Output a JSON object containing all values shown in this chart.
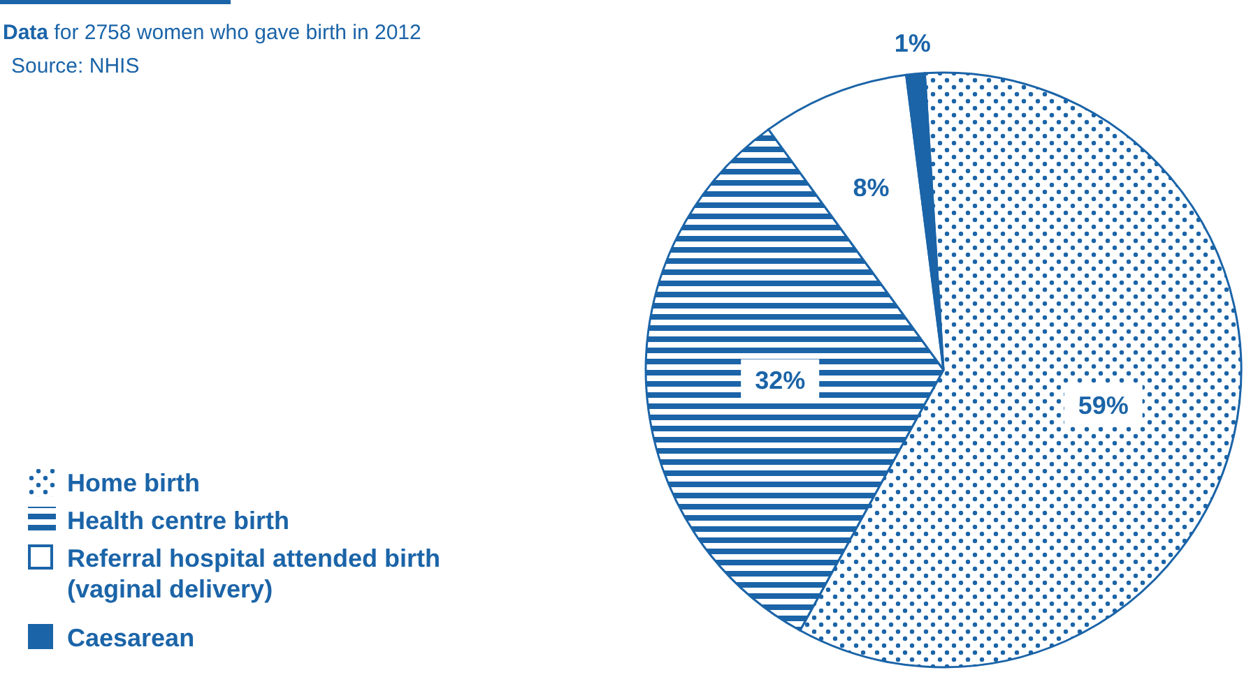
{
  "chart_data": {
    "type": "pie",
    "title": "Data for 2758 women who gave birth in 2012",
    "annotations": [
      "Source: NHIS"
    ],
    "categories": [
      "Home birth",
      "Health centre birth",
      "Referral hospital attended birth (vaginal delivery)",
      "Caesarean"
    ],
    "values": [
      59,
      32,
      8,
      1
    ],
    "colors": [
      "#1b64a8",
      "#1b64a8",
      "#ffffff",
      "#1b64a8"
    ],
    "value_labels": [
      "59%",
      "32%",
      "8%",
      "1%"
    ],
    "legend": "bottom left"
  }
}
